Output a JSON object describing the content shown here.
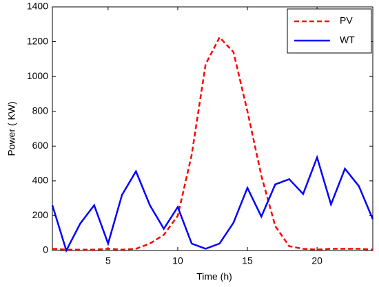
{
  "chart_data": {
    "type": "line",
    "xlabel": "Time (h)",
    "ylabel": "Power ( KW)",
    "x": [
      1,
      2,
      3,
      4,
      5,
      6,
      7,
      8,
      9,
      10,
      11,
      12,
      13,
      14,
      15,
      16,
      17,
      18,
      19,
      20,
      21,
      22,
      23,
      24
    ],
    "series": [
      {
        "name": "PV",
        "color": "#ff0000",
        "dashed": true,
        "values": [
          10,
          5,
          5,
          5,
          10,
          5,
          10,
          40,
          90,
          200,
          550,
          1070,
          1225,
          1140,
          800,
          430,
          140,
          25,
          10,
          5,
          10,
          10,
          10,
          5
        ]
      },
      {
        "name": "WT",
        "color": "#0000ff",
        "dashed": false,
        "values": [
          260,
          0,
          155,
          260,
          40,
          320,
          455,
          260,
          125,
          250,
          40,
          10,
          40,
          160,
          360,
          195,
          380,
          410,
          325,
          535,
          265,
          470,
          370,
          180
        ]
      }
    ],
    "xlim": [
      1,
      24
    ],
    "xticks": [
      5,
      10,
      15,
      20
    ],
    "ylim": [
      0,
      1400
    ],
    "yticks": [
      0,
      200,
      400,
      600,
      800,
      1000,
      1200,
      1400
    ],
    "legend": "top-right",
    "grid": false
  }
}
